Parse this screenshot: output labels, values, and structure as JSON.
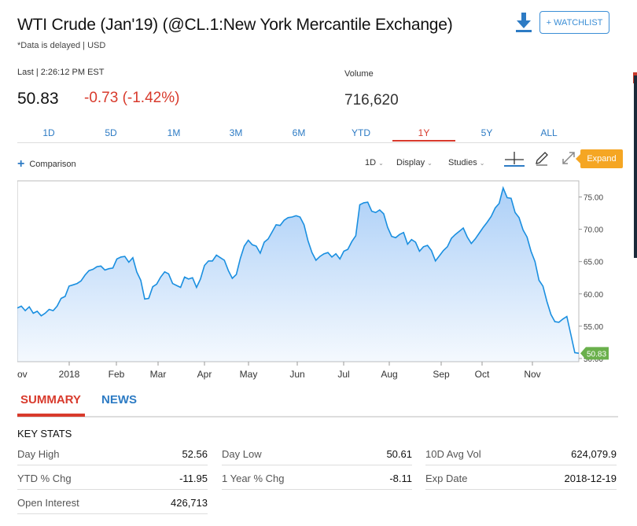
{
  "header": {
    "title": "WTI Crude (Jan'19) (@CL.1:New York Mercantile Exchange)",
    "subtitle": "*Data is delayed | USD",
    "watchlist_label": "+ WATCHLIST",
    "download_icon": "download-icon"
  },
  "quote": {
    "last_label": "Last | 2:26:12 PM EST",
    "last_price": "50.83",
    "change": "-0.73 (-1.42%)",
    "volume_label": "Volume",
    "volume_value": "716,620",
    "change_color": "#d83a2c"
  },
  "ranges": [
    "1D",
    "5D",
    "1M",
    "3M",
    "6M",
    "YTD",
    "1Y",
    "5Y",
    "ALL"
  ],
  "active_range": "1Y",
  "toolbar": {
    "comparison_label": "Comparison",
    "interval_label": "1D",
    "display_label": "Display",
    "studies_label": "Studies",
    "expand_label": "Expand"
  },
  "chart_data": {
    "type": "area",
    "x_tick_labels": [
      "ov",
      "2018",
      "Feb",
      "Mar",
      "Apr",
      "May",
      "Jun",
      "Jul",
      "Aug",
      "Sep",
      "Oct",
      "Nov"
    ],
    "y_tick_labels": [
      "75.00",
      "70.00",
      "65.00",
      "60.00",
      "55.00",
      "50.00"
    ],
    "ylim": [
      49.5,
      77.5
    ],
    "last_value_label": "50.83",
    "line_color": "#1a8fe0",
    "fill_color": "#a8cdf7",
    "label_color": "#6ab04c",
    "series": [
      {
        "values": [
          57.8,
          58.1,
          57.4,
          58.0,
          57.0,
          57.3,
          56.6,
          57.0,
          57.6,
          57.4,
          58.1,
          59.3,
          59.6,
          61.2,
          61.4,
          61.6,
          62.0,
          62.9,
          63.6,
          63.8,
          64.2,
          64.3,
          63.7,
          63.9,
          64.0,
          65.4,
          65.7,
          65.8,
          64.9,
          65.6,
          63.4,
          62.1,
          59.2,
          59.3,
          61.1,
          61.5,
          62.6,
          63.4,
          63.1,
          61.6,
          61.3,
          61.0,
          62.6,
          62.3,
          62.5,
          61.0,
          62.3,
          64.4,
          65.1,
          65.1,
          66.0,
          65.6,
          65.2,
          63.6,
          62.4,
          63.0,
          65.5,
          67.4,
          68.3,
          67.6,
          67.4,
          66.3,
          68.0,
          68.5,
          69.6,
          70.7,
          70.6,
          71.4,
          71.8,
          71.9,
          72.1,
          71.9,
          70.7,
          68.2,
          66.4,
          65.2,
          65.8,
          66.2,
          66.4,
          65.7,
          66.2,
          65.4,
          66.6,
          66.9,
          68.1,
          69.0,
          73.8,
          74.1,
          74.2,
          72.8,
          72.6,
          73.0,
          72.4,
          70.3,
          68.9,
          68.7,
          69.2,
          69.5,
          67.7,
          68.4,
          68.0,
          66.6,
          67.3,
          67.5,
          66.7,
          65.1,
          65.9,
          66.7,
          67.3,
          68.6,
          69.2,
          69.7,
          70.2,
          68.8,
          67.8,
          68.5,
          69.4,
          70.3,
          71.1,
          72.0,
          73.3,
          74.0,
          76.4,
          74.9,
          74.8,
          72.6,
          71.8,
          69.9,
          68.8,
          66.6,
          65.0,
          62.1,
          61.2,
          58.8,
          56.8,
          55.7,
          55.6,
          56.1,
          56.5,
          53.7,
          50.9,
          50.8
        ]
      }
    ]
  },
  "tabs": [
    "SUMMARY",
    "NEWS"
  ],
  "key_stats": {
    "title": "KEY STATS",
    "rows": [
      {
        "label": "Day High",
        "value": "52.56"
      },
      {
        "label": "Day Low",
        "value": "50.61"
      },
      {
        "label": "10D Avg Vol",
        "value": "624,079.9"
      },
      {
        "label": "YTD % Chg",
        "value": "-11.95"
      },
      {
        "label": "1 Year % Chg",
        "value": "-8.11"
      },
      {
        "label": "Exp Date",
        "value": "2018-12-19"
      },
      {
        "label": "Open Interest",
        "value": "426,713"
      }
    ]
  }
}
